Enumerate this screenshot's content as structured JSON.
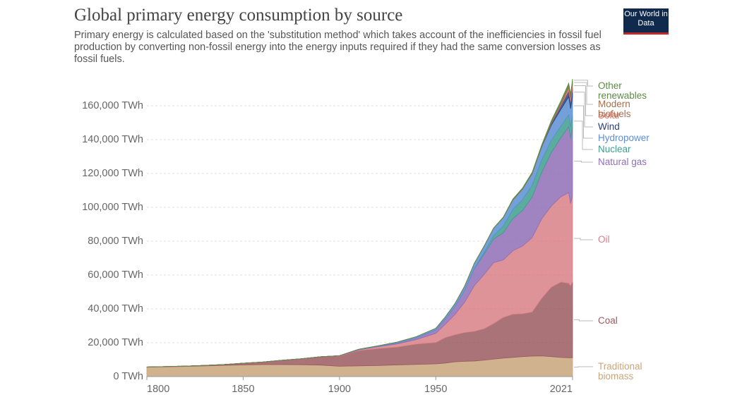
{
  "chart_data": {
    "type": "stacked-area",
    "title": "Global primary energy consumption by source",
    "subtitle": "Primary energy is calculated based on the 'substitution method' which takes account of the inefficiencies in fossil fuel production by converting non-fossil energy into the energy inputs required if they had the same conversion losses as fossil fuels.",
    "logo": "Our World in Data",
    "x": [
      1800,
      1810,
      1820,
      1830,
      1840,
      1850,
      1860,
      1870,
      1880,
      1890,
      1900,
      1910,
      1920,
      1930,
      1940,
      1950,
      1955,
      1960,
      1965,
      1970,
      1975,
      1980,
      1985,
      1990,
      1995,
      2000,
      2005,
      2010,
      2015,
      2019,
      2020,
      2021
    ],
    "xlim": [
      1800,
      2021
    ],
    "xticks": [
      1800,
      1850,
      1900,
      1950,
      2021
    ],
    "ylim": [
      0,
      180000
    ],
    "yticks": [
      {
        "value": 0,
        "label": "0 TWh"
      },
      {
        "value": 20000,
        "label": "20,000 TWh"
      },
      {
        "value": 40000,
        "label": "40,000 TWh"
      },
      {
        "value": 60000,
        "label": "60,000 TWh"
      },
      {
        "value": 80000,
        "label": "80,000 TWh"
      },
      {
        "value": 100000,
        "label": "100,000 TWh"
      },
      {
        "value": 120000,
        "label": "120,000 TWh"
      },
      {
        "value": 140000,
        "label": "140,000 TWh"
      },
      {
        "value": 160000,
        "label": "160,000 TWh"
      }
    ],
    "grid": true,
    "series": [
      {
        "name": "Traditional biomass",
        "color": "#c9a57b",
        "values": [
          5556,
          5800,
          6000,
          6300,
          6600,
          6900,
          7100,
          7100,
          7000,
          6800,
          6100,
          6300,
          6500,
          6900,
          7200,
          7500,
          8000,
          8700,
          9000,
          9200,
          9700,
          10300,
          10900,
          11300,
          11800,
          12100,
          12200,
          11800,
          11300,
          11100,
          11100,
          11100
        ]
      },
      {
        "name": "Coal",
        "color": "#9a5a60",
        "values": [
          97,
          130,
          180,
          300,
          500,
          1000,
          1500,
          2500,
          3500,
          4800,
          6000,
          9000,
          10000,
          10500,
          12000,
          12600,
          15000,
          16000,
          17000,
          17500,
          18500,
          21000,
          24000,
          25500,
          25300,
          26000,
          34000,
          41000,
          44500,
          44000,
          42500,
          45000
        ]
      },
      {
        "name": "Oil",
        "color": "#d88087",
        "values": [
          0,
          0,
          0,
          0,
          0,
          0,
          0,
          6,
          33,
          88,
          181,
          500,
          1100,
          1900,
          2700,
          5400,
          8000,
          12000,
          18000,
          27000,
          32000,
          36000,
          34000,
          37500,
          40000,
          44000,
          47000,
          48000,
          50500,
          53600,
          48600,
          51000
        ]
      },
      {
        "name": "Natural gas",
        "color": "#8e6fb6",
        "values": [
          0,
          0,
          0,
          0,
          0,
          0,
          0,
          0,
          0,
          0,
          64,
          150,
          240,
          550,
          880,
          2100,
          3000,
          4700,
          7000,
          10000,
          12000,
          14000,
          16000,
          19000,
          21000,
          24000,
          27500,
          31600,
          35000,
          39000,
          38500,
          40400
        ]
      },
      {
        "name": "Nuclear",
        "color": "#3e9d8d",
        "values": [
          0,
          0,
          0,
          0,
          0,
          0,
          0,
          0,
          0,
          0,
          0,
          0,
          0,
          0,
          0,
          0,
          0,
          2,
          60,
          200,
          1000,
          1900,
          4000,
          5500,
          6300,
          6900,
          7300,
          7200,
          6700,
          7000,
          6700,
          6900
        ]
      },
      {
        "name": "Hydropower",
        "color": "#5b8fd1",
        "values": [
          0,
          0,
          0,
          0,
          0,
          0,
          0,
          0,
          0,
          0,
          0,
          200,
          350,
          500,
          800,
          900,
          1300,
          1800,
          2400,
          3000,
          3700,
          4400,
          5000,
          5500,
          6300,
          6800,
          7700,
          9000,
          10000,
          10600,
          10900,
          11200
        ]
      },
      {
        "name": "Wind",
        "color": "#2b3f7d",
        "values": [
          0,
          0,
          0,
          0,
          0,
          0,
          0,
          0,
          0,
          0,
          0,
          0,
          0,
          0,
          0,
          0,
          0,
          0,
          0,
          0,
          0,
          0,
          0,
          10,
          20,
          80,
          260,
          900,
          2200,
          3600,
          4000,
          4900
        ]
      },
      {
        "name": "Solar",
        "color": "#e2716e",
        "values": [
          0,
          0,
          0,
          0,
          0,
          0,
          0,
          0,
          0,
          0,
          0,
          0,
          0,
          0,
          0,
          0,
          0,
          0,
          0,
          0,
          0,
          0,
          0,
          0,
          0,
          0,
          10,
          80,
          650,
          1800,
          2200,
          2700
        ]
      },
      {
        "name": "Modern biofuels",
        "color": "#a56f4d",
        "values": [
          0,
          0,
          0,
          0,
          0,
          0,
          0,
          0,
          0,
          0,
          0,
          0,
          0,
          0,
          0,
          0,
          0,
          0,
          0,
          0,
          0,
          0,
          0,
          180,
          200,
          190,
          320,
          800,
          1000,
          1200,
          1100,
          1150
        ]
      },
      {
        "name": "Other renewables",
        "color": "#5d8a46",
        "values": [
          0,
          0,
          0,
          0,
          0,
          0,
          0,
          0,
          0,
          0,
          0,
          0,
          0,
          0,
          0,
          0,
          0,
          0,
          50,
          60,
          100,
          180,
          300,
          400,
          500,
          600,
          700,
          900,
          1200,
          1400,
          1450,
          1500
        ]
      }
    ]
  }
}
